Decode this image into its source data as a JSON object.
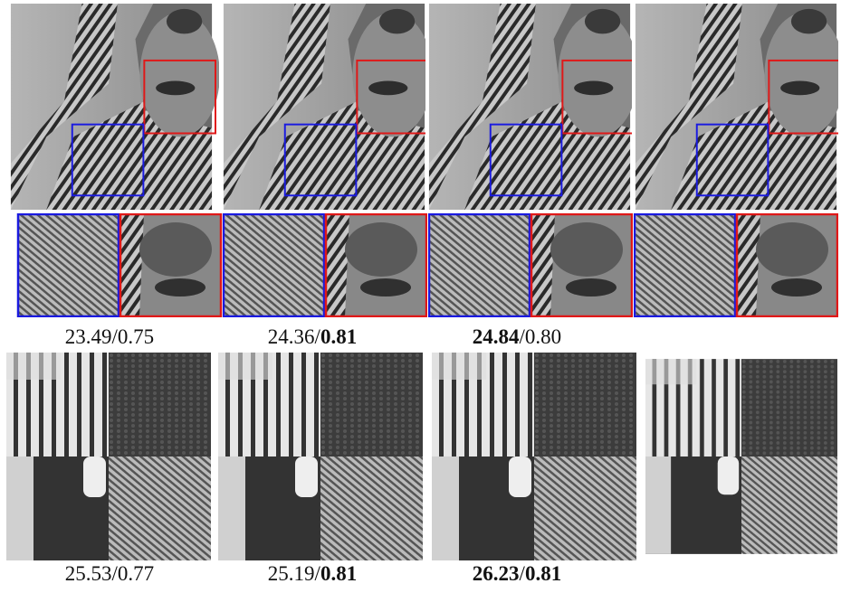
{
  "captions": [
    [
      {
        "parts": [
          {
            "text": "23.49/0.75",
            "bold": false
          }
        ]
      },
      {
        "parts": [
          {
            "text": "24.36/",
            "bold": false
          },
          {
            "text": "0.81",
            "bold": true
          }
        ]
      },
      {
        "parts": [
          {
            "text": "24.84",
            "bold": true
          },
          {
            "text": "/0.80",
            "bold": false
          }
        ]
      }
    ],
    [
      {
        "parts": [
          {
            "text": "25.53/0.77",
            "bold": false
          }
        ]
      },
      {
        "parts": [
          {
            "text": "25.19/",
            "bold": false
          },
          {
            "text": "0.81",
            "bold": true
          }
        ]
      },
      {
        "parts": [
          {
            "text": "26.23",
            "bold": true
          },
          {
            "text": "/",
            "bold": false
          },
          {
            "text": "0.81",
            "bold": true
          }
        ]
      }
    ]
  ]
}
